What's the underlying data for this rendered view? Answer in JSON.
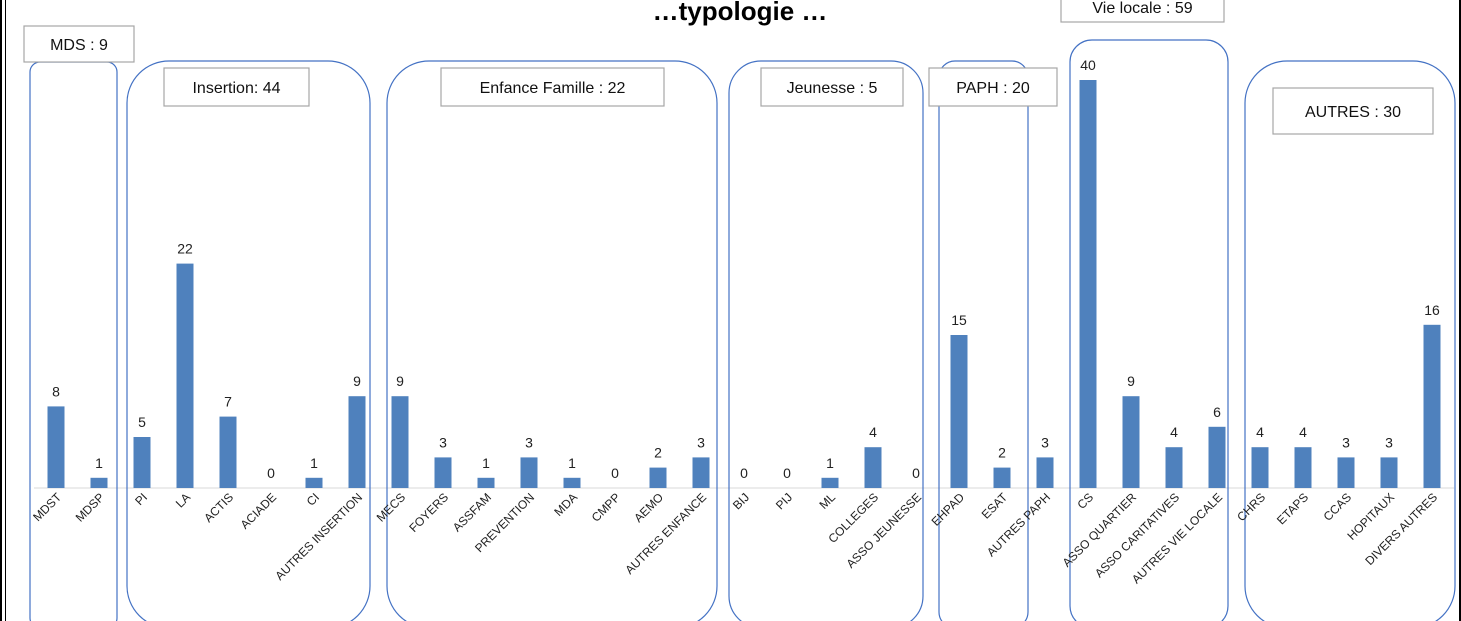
{
  "chart_data": {
    "type": "bar",
    "title": "…typologie …",
    "categories": [
      "MDST",
      "MDSP",
      "PI",
      "LA",
      "ACTIS",
      "ACIADE",
      "CI",
      "AUTRES INSERTION",
      "MECS",
      "FOYERS",
      "ASSFAM",
      "PREVENTION",
      "MDA",
      "CMPP",
      "AEMO",
      "AUTRES ENFANCE",
      "BIJ",
      "PIJ",
      "ML",
      "COLLEGES",
      "ASSO JEUNESSE",
      "EHPAD",
      "ESAT",
      "AUTRES PAPH",
      "CS",
      "ASSO QUARTIER",
      "ASSO CARITATIVES",
      "AUTRES VIE LOCALE",
      "CHRS",
      "ETAPS",
      "CCAS",
      "HOPITAUX",
      "DIVERS AUTRES"
    ],
    "values": [
      8,
      1,
      5,
      22,
      7,
      0,
      1,
      9,
      9,
      3,
      1,
      3,
      1,
      0,
      2,
      3,
      0,
      0,
      1,
      4,
      0,
      15,
      2,
      3,
      40,
      9,
      4,
      6,
      4,
      4,
      3,
      3,
      16
    ],
    "ylim": [
      0,
      42
    ],
    "bar_color": "#4F81BD",
    "group_border_color": "#4472C4",
    "groups": [
      {
        "label": "MDS : 9",
        "first": 0,
        "last": 1
      },
      {
        "label": "Insertion: 44",
        "first": 2,
        "last": 7
      },
      {
        "label": "Enfance Famille : 22",
        "first": 8,
        "last": 15
      },
      {
        "label": "Jeunesse : 5",
        "first": 16,
        "last": 20
      },
      {
        "label": "PAPH : 20",
        "first": 21,
        "last": 23
      },
      {
        "label": "Vie locale : 59",
        "first": 24,
        "last": 27
      },
      {
        "label": "AUTRES : 30",
        "first": 28,
        "last": 32
      }
    ]
  }
}
